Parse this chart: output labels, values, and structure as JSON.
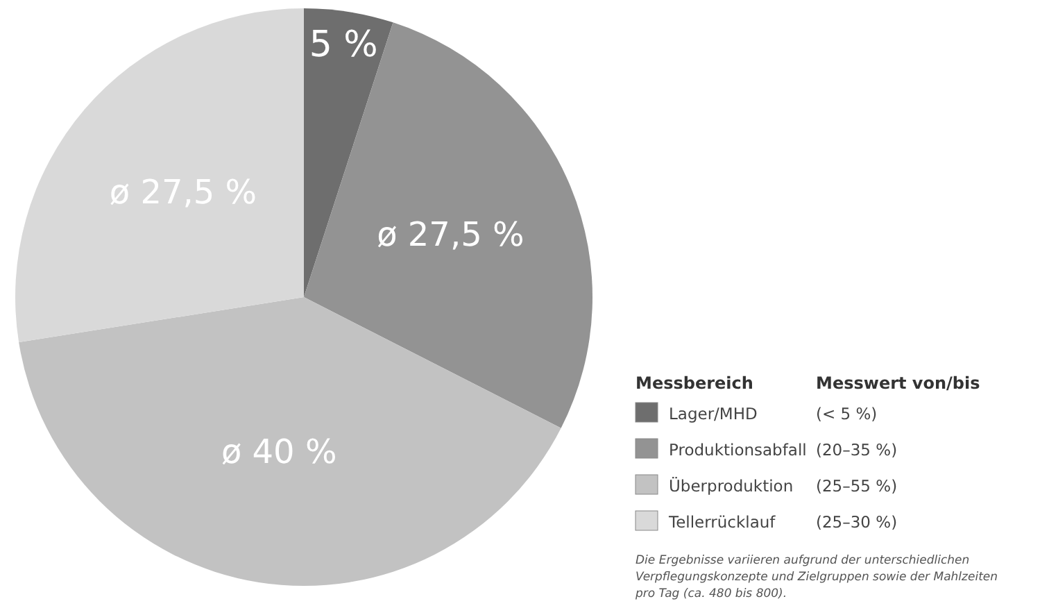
{
  "chart_data": {
    "type": "pie",
    "legend_title": "Messbereich",
    "categories": [
      "Lager/MHD",
      "Produktionsabfall",
      "Überproduktion",
      "Tellerrücklauf"
    ],
    "values": [
      5,
      27.5,
      40,
      27.5
    ],
    "colors": [
      "#6e6e6e",
      "#939393",
      "#c2c2c2",
      "#d9d9d9"
    ],
    "value_labels": [
      "5 %",
      "ø 27,5 %",
      "ø 40 %",
      "ø 27,5 %"
    ],
    "legend": "right",
    "annotations": [
      "Messwert von/bis",
      "(< 5 %)",
      "(20–35 %)",
      "(25–55 %)",
      "(25–30 %)",
      "Die Ergebnisse variieren aufgrund der unterschiedlichen Verpflegungskonzepte und Zielgruppen sowie der Mahlzeiten pro Tag (ca. 480 bis 800)."
    ]
  }
}
